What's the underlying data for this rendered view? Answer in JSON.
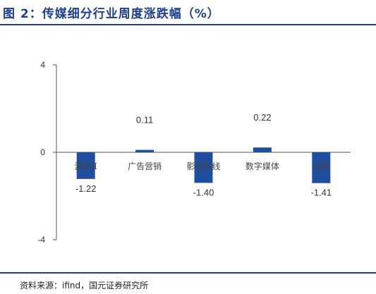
{
  "title": "图 2：传媒细分行业周度涨跌幅（%）",
  "source": "资料来源：ifind，国元证券研究所",
  "colors": {
    "bar": "#1f4e9e",
    "accent": "#1f3f8c",
    "axis": "#555555"
  },
  "chart_data": {
    "type": "bar",
    "categories": [
      "游戏Ⅱ",
      "广告营销",
      "影视院线",
      "数字媒体",
      "出版"
    ],
    "values": [
      -1.22,
      0.11,
      -1.4,
      0.22,
      -1.41
    ],
    "data_labels": [
      "-1.22",
      "0.11",
      "-1.40",
      "0.22",
      "-1.41"
    ],
    "yticks": [
      4,
      0,
      -4
    ],
    "ylim": [
      -4,
      4
    ],
    "grid": false,
    "legend": "none"
  }
}
